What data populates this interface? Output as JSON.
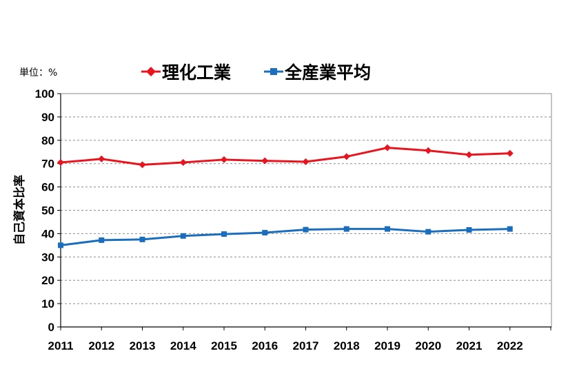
{
  "chart_data": {
    "type": "line",
    "unit_label": "単位：%",
    "ylabel": "自己資本比率",
    "xlabel": "",
    "categories": [
      "2011",
      "2012",
      "2013",
      "2014",
      "2015",
      "2016",
      "2017",
      "2018",
      "2019",
      "2020",
      "2021",
      "2022"
    ],
    "yticks": [
      "0",
      "10",
      "20",
      "30",
      "40",
      "50",
      "60",
      "70",
      "80",
      "90",
      "100"
    ],
    "ylim": [
      0,
      100
    ],
    "grid": true,
    "legend_position": "top",
    "series": [
      {
        "name": "理化工業",
        "color": "#e8141e",
        "marker": "diamond",
        "values": [
          70.5,
          72.0,
          69.5,
          70.5,
          71.7,
          71.2,
          70.8,
          73.0,
          76.8,
          75.6,
          73.8,
          74.4
        ]
      },
      {
        "name": "全産業平均",
        "color": "#1a6ebd",
        "marker": "square",
        "values": [
          35.0,
          37.2,
          37.5,
          39.0,
          39.8,
          40.4,
          41.7,
          42.0,
          42.0,
          40.8,
          41.6,
          42.0
        ]
      }
    ]
  }
}
